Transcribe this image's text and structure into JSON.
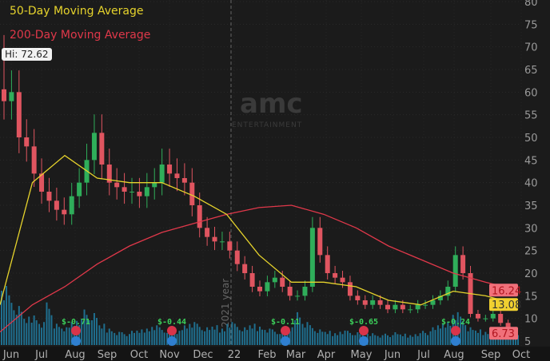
{
  "legend": {
    "ma50": "50-Day Moving Average",
    "ma200": "200-Day Moving Average"
  },
  "hi_label": "Hi: 72.62",
  "watermark": {
    "logo": "amc",
    "sub": "ENTERTAINMENT"
  },
  "year_label": "2021 year",
  "colors": {
    "background": "#1b1b1b",
    "up": "#2fae5a",
    "down": "#e05560",
    "ma50": "#e6d32c",
    "ma200": "#e0384a",
    "volume": "#1f6f8f"
  },
  "chart_data": {
    "type": "candlestick",
    "ylim": [
      5,
      80
    ],
    "yticks": [
      5,
      10,
      15,
      20,
      25,
      30,
      35,
      40,
      45,
      50,
      55,
      60,
      65,
      70,
      75,
      80
    ],
    "xticks": [
      "Jun",
      "Jul",
      "Aug",
      "Sep",
      "Oct",
      "Nov",
      "Dec",
      "22",
      "Feb",
      "Mar",
      "Apr",
      "May",
      "Jun",
      "Jul",
      "Aug",
      "Sep",
      "Oct"
    ],
    "grid": true,
    "high_marker": 72.62,
    "weekly_close": [
      58,
      60,
      50,
      48,
      42,
      38,
      36,
      34,
      33,
      37,
      40,
      45,
      51,
      44,
      40,
      39,
      38,
      38,
      37,
      39,
      40,
      44,
      42,
      41,
      40,
      35,
      30,
      28,
      27,
      27,
      25,
      22,
      20,
      17,
      16,
      18,
      19,
      17,
      15,
      15,
      17,
      30,
      24,
      20,
      19,
      18,
      15,
      14,
      13,
      14,
      13,
      12,
      13,
      12,
      12,
      13,
      13,
      14,
      15,
      17,
      24,
      20,
      11,
      10,
      10,
      11,
      9,
      7.5,
      6.73
    ],
    "ma50": [
      13,
      40,
      46,
      41,
      40,
      40,
      37,
      33,
      24,
      18,
      18,
      17,
      14,
      13,
      16,
      15,
      13.08
    ],
    "ma200": [
      7,
      13,
      17,
      22,
      26,
      29,
      31,
      33,
      34.5,
      35,
      33,
      30,
      26,
      23,
      20,
      18,
      16.24
    ],
    "volume_relative": [
      90,
      70,
      55,
      40,
      45,
      35,
      60,
      30,
      25,
      35,
      40,
      50,
      45,
      30,
      25,
      20,
      18,
      20,
      22,
      25,
      30,
      25,
      22,
      20,
      30,
      35,
      30,
      25,
      28,
      25,
      35,
      30,
      25,
      30,
      28,
      25,
      22,
      20,
      25,
      50,
      35,
      28,
      22,
      20,
      18,
      22,
      20,
      18,
      16,
      18,
      15,
      16,
      18,
      16,
      15,
      18,
      20,
      25,
      30,
      35,
      50,
      40,
      25,
      22,
      20,
      18,
      16,
      15,
      14
    ],
    "last_labels": [
      {
        "label": "16.24",
        "series": "ma200"
      },
      {
        "label": "13.08",
        "series": "ma50"
      },
      {
        "label": "6.73",
        "series": "price"
      }
    ],
    "earnings": [
      {
        "month": "Aug",
        "label": "$-0.71"
      },
      {
        "month": "Nov",
        "label": "$-0.44"
      },
      {
        "month": "Mar",
        "label": "$-0.11"
      },
      {
        "month": "May",
        "label": "$-0.65"
      },
      {
        "month": "Aug",
        "label": "$-0.24"
      }
    ]
  }
}
